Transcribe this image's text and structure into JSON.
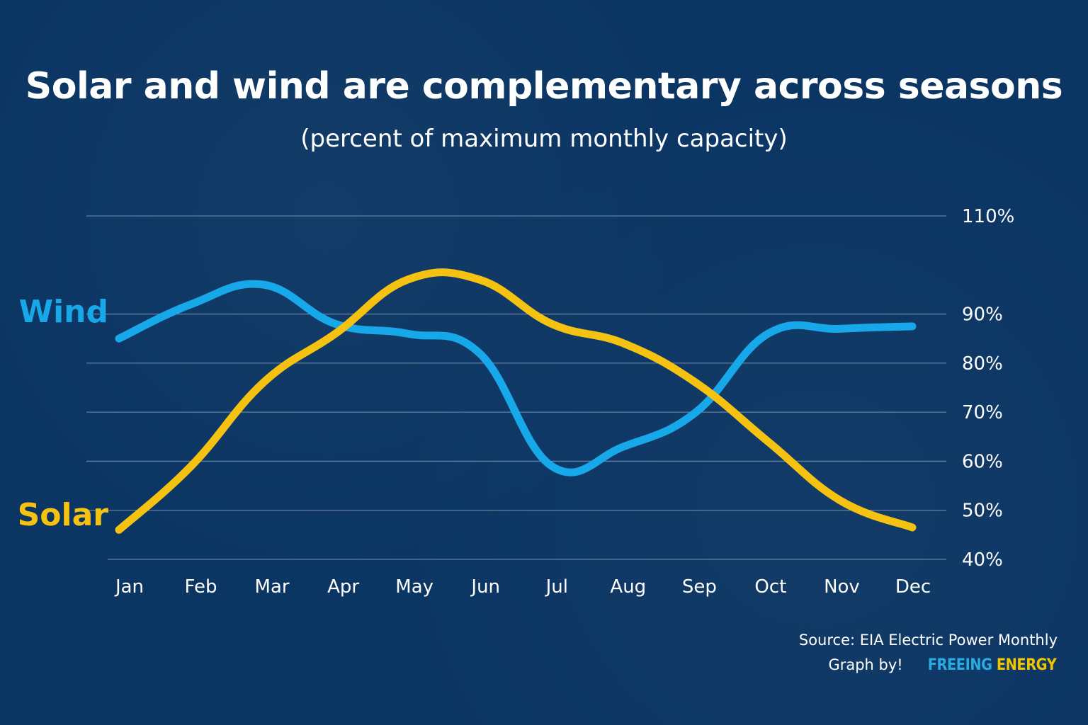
{
  "chart_data": {
    "type": "line",
    "title": "Solar and wind are complementary across seasons",
    "subtitle": "(percent of maximum monthly capacity)",
    "categories": [
      "Jan",
      "Feb",
      "Mar",
      "Apr",
      "May",
      "Jun",
      "Jul",
      "Aug",
      "Sep",
      "Oct",
      "Nov",
      "Dec"
    ],
    "series": [
      {
        "name": "Wind",
        "color": "#16a8e8",
        "values": [
          85,
          92,
          96,
          88,
          86,
          82,
          59,
          63,
          70,
          86,
          87,
          87.5
        ]
      },
      {
        "name": "Solar",
        "color": "#f5c211",
        "values": [
          46,
          59,
          76,
          86,
          97,
          97,
          88,
          84,
          76,
          64,
          52,
          46.5
        ]
      }
    ],
    "ylim": [
      40,
      110
    ],
    "yticks": [
      40,
      50,
      60,
      70,
      80,
      90,
      110
    ],
    "ytick_labels": [
      "40%",
      "50%",
      "60%",
      "70%",
      "80%",
      "90%",
      "110%"
    ],
    "yaxis_position": "right",
    "grid": true,
    "grid_color": "#7f98b6",
    "tick_label_color": "#ffffff",
    "background_color": "#0b3563"
  },
  "footer": {
    "source": "Source: EIA Electric Power Monthly",
    "credit_prefix": "Graph by!",
    "brand_part1": "FREEING",
    "brand_part2": "ENERGY",
    "brand_color_1": "#29abe2",
    "brand_color_2": "#f2c400"
  }
}
